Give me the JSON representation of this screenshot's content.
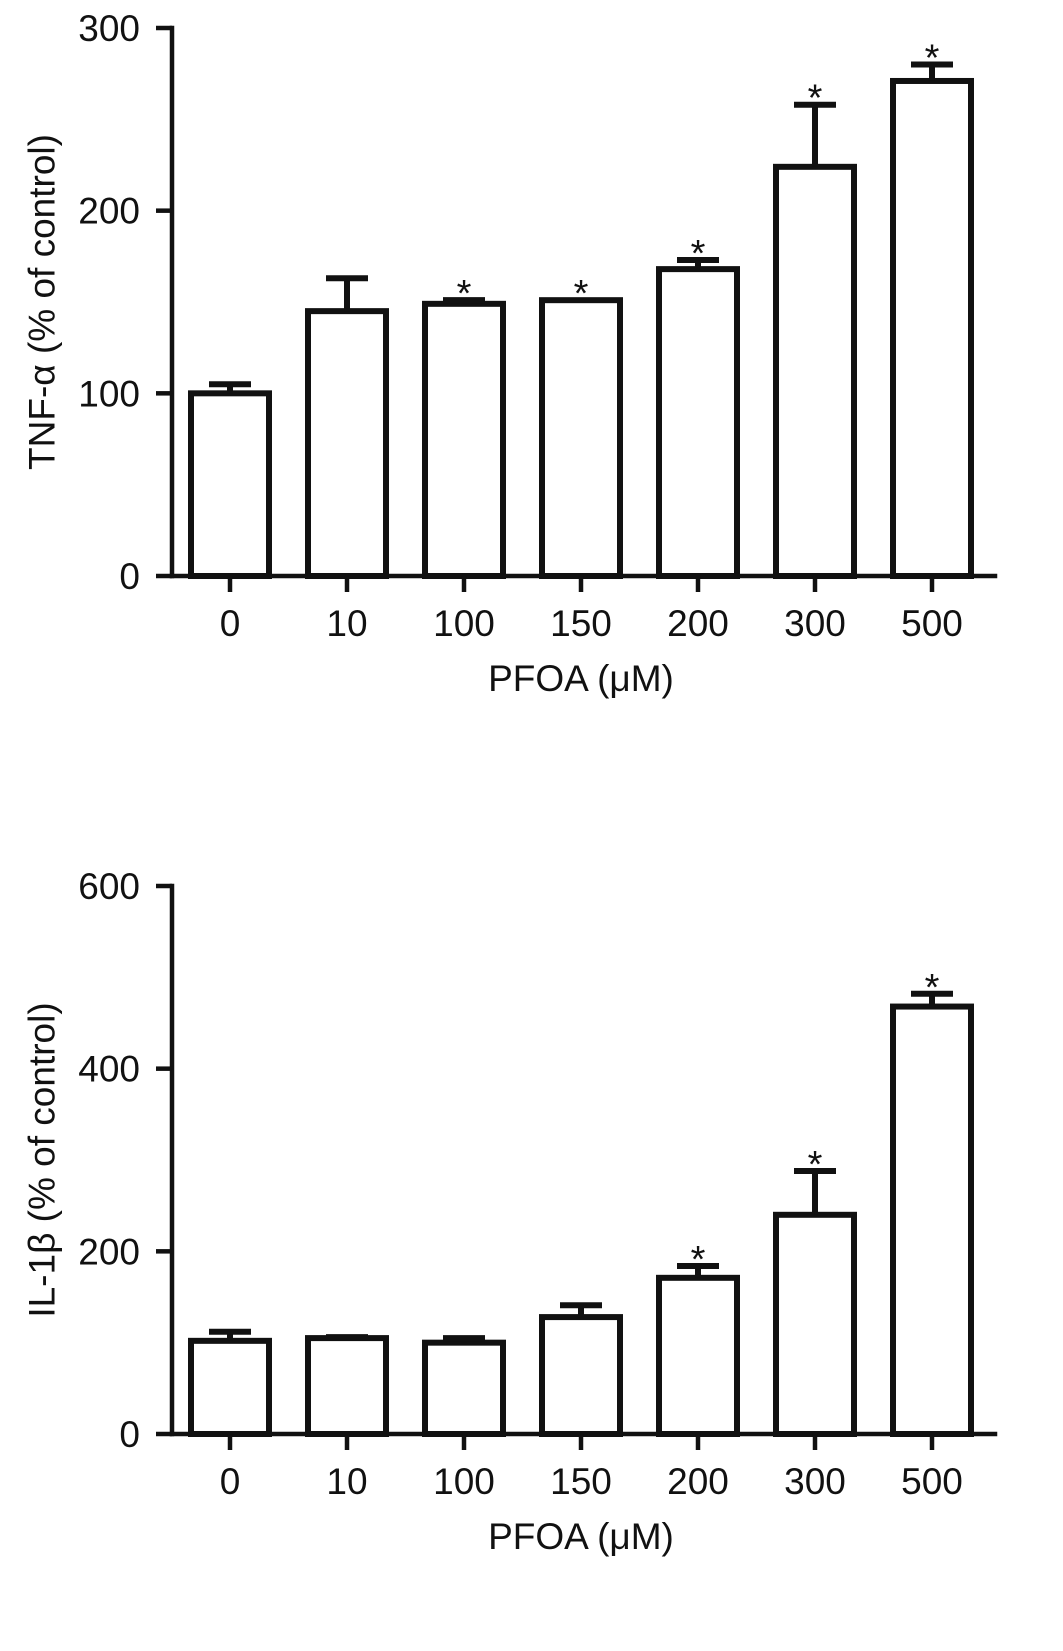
{
  "chart_data": [
    {
      "type": "bar",
      "xlabel": "PFOA (μM)",
      "ylabel": "TNF-α (% of control)",
      "ylim": [
        0,
        300
      ],
      "yticks": [
        0,
        100,
        200,
        300
      ],
      "categories": [
        "0",
        "10",
        "100",
        "150",
        "200",
        "300",
        "500"
      ],
      "values": [
        100,
        145,
        149,
        151,
        168,
        224,
        271
      ],
      "error_upper": [
        105,
        163,
        151,
        151,
        173,
        258,
        280
      ],
      "significance": [
        "",
        "",
        "*",
        "*",
        "*",
        "*",
        "*"
      ],
      "grid": false,
      "legend": "none"
    },
    {
      "type": "bar",
      "xlabel": "PFOA (μM)",
      "ylabel": "IL-1β (% of control)",
      "ylim": [
        0,
        600
      ],
      "yticks": [
        0,
        200,
        400,
        600
      ],
      "categories": [
        "0",
        "10",
        "100",
        "150",
        "200",
        "300",
        "500"
      ],
      "values": [
        102,
        105,
        100,
        128,
        171,
        240,
        468
      ],
      "error_upper": [
        112,
        106,
        105,
        141,
        184,
        288,
        482
      ],
      "significance": [
        "",
        "",
        "",
        "",
        "*",
        "*",
        "*"
      ],
      "grid": false,
      "legend": "none"
    }
  ]
}
